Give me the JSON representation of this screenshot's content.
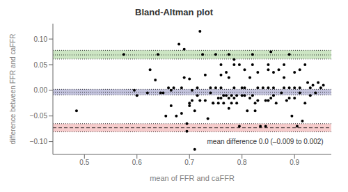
{
  "chart_data": {
    "type": "scatter",
    "title": "Bland-Altman plot",
    "xlabel": "mean of FFR and caFFR",
    "ylabel": "difference between FFR and caFFR",
    "xlim": [
      0.44,
      0.97
    ],
    "ylim": [
      -0.125,
      0.13
    ],
    "xticks": [
      0.5,
      0.6,
      0.7,
      0.8,
      0.9
    ],
    "yticks": [
      {
        "value": -0.1,
        "label": "−0.10"
      },
      {
        "value": -0.05,
        "label": "−0.05"
      },
      {
        "value": 0,
        "label": "0.00"
      },
      {
        "value": 0.05,
        "label": "0.05"
      },
      {
        "value": 0.1,
        "label": "0.10"
      }
    ],
    "grid": false,
    "color": "black",
    "bands": [
      {
        "y1": 0.061,
        "y2": 0.078,
        "color": "#99cc88"
      },
      {
        "y1": -0.009,
        "y2": 0.002,
        "color": "#8888bb"
      },
      {
        "y1": -0.081,
        "y2": -0.065,
        "color": "#ee9999"
      }
    ],
    "reference_lines": [
      {
        "y": 0.078,
        "line_style": "dotted"
      },
      {
        "y": 0.069,
        "line_style": "dotted"
      },
      {
        "y": 0.061,
        "line_style": "dotted"
      },
      {
        "y": 0.002,
        "line_style": "dotted"
      },
      {
        "y": -0.0035,
        "line_style": "dotted"
      },
      {
        "y": -0.009,
        "line_style": "dotted"
      },
      {
        "y": -0.065,
        "line_style": "dotted"
      },
      {
        "y": -0.073,
        "line_style": "dashed"
      },
      {
        "y": -0.081,
        "line_style": "dotted"
      }
    ],
    "annotations": [
      {
        "text": "mean difference 0.0 (–0.009 to 0.002)",
        "x": 0.955,
        "y": -0.108
      }
    ],
    "x": [
      0.485,
      0.575,
      0.595,
      0.6,
      0.62,
      0.625,
      0.635,
      0.64,
      0.645,
      0.65,
      0.655,
      0.66,
      0.665,
      0.665,
      0.67,
      0.675,
      0.68,
      0.685,
      0.685,
      0.69,
      0.69,
      0.695,
      0.695,
      0.7,
      0.7,
      0.7,
      0.705,
      0.705,
      0.71,
      0.71,
      0.715,
      0.715,
      0.72,
      0.72,
      0.725,
      0.73,
      0.73,
      0.735,
      0.74,
      0.74,
      0.745,
      0.745,
      0.75,
      0.75,
      0.755,
      0.755,
      0.76,
      0.76,
      0.76,
      0.76,
      0.765,
      0.765,
      0.77,
      0.77,
      0.775,
      0.775,
      0.775,
      0.775,
      0.78,
      0.78,
      0.785,
      0.785,
      0.785,
      0.785,
      0.79,
      0.79,
      0.795,
      0.795,
      0.8,
      0.8,
      0.805,
      0.805,
      0.805,
      0.81,
      0.815,
      0.815,
      0.82,
      0.82,
      0.82,
      0.825,
      0.825,
      0.83,
      0.83,
      0.83,
      0.835,
      0.84,
      0.845,
      0.845,
      0.85,
      0.85,
      0.85,
      0.85,
      0.855,
      0.855,
      0.86,
      0.86,
      0.86,
      0.865,
      0.87,
      0.875,
      0.88,
      0.88,
      0.88,
      0.885,
      0.89,
      0.89,
      0.89,
      0.895,
      0.9,
      0.9,
      0.9,
      0.905,
      0.91,
      0.91,
      0.91,
      0.915,
      0.92,
      0.92,
      0.925,
      0.93,
      0.93,
      0.935,
      0.94,
      0.945,
      0.95,
      0.955
    ],
    "values": [
      -0.04,
      0.07,
      0.0,
      -0.01,
      -0.005,
      0.04,
      0.02,
      0.07,
      -0.005,
      -0.005,
      -0.05,
      0.005,
      0.0,
      -0.03,
      0.005,
      -0.05,
      0.09,
      0.005,
      -0.045,
      0.08,
      0.025,
      -0.065,
      -0.08,
      0.022,
      -0.025,
      -0.03,
      0.0,
      -0.02,
      -0.115,
      -0.04,
      0.005,
      -0.01,
      0.115,
      -0.02,
      0.07,
      0.03,
      -0.02,
      -0.055,
      0.005,
      -0.005,
      -0.025,
      -0.025,
      0.07,
      0.005,
      -0.015,
      -0.025,
      0.05,
      0.03,
      0.005,
      -0.015,
      -0.01,
      -0.025,
      0.035,
      -0.01,
      0.07,
      0.025,
      -0.015,
      -0.035,
      -0.01,
      -0.025,
      0.06,
      0.05,
      0.005,
      -0.015,
      -0.01,
      -0.025,
      0.05,
      -0.07,
      0.005,
      -0.01,
      0.04,
      0.005,
      -0.01,
      -0.04,
      0.025,
      -0.015,
      0.07,
      0.05,
      -0.01,
      -0.025,
      -0.04,
      0.035,
      0.005,
      -0.02,
      -0.07,
      0.005,
      -0.02,
      -0.07,
      0.05,
      0.04,
      0.005,
      -0.02,
      0.075,
      -0.015,
      0.035,
      0.005,
      -0.01,
      -0.025,
      0.04,
      -0.005,
      0.05,
      0.025,
      0.005,
      -0.02,
      0.07,
      0.005,
      -0.015,
      -0.05,
      0.035,
      0.005,
      -0.015,
      -0.07,
      0.04,
      0.005,
      -0.005,
      -0.06,
      0.05,
      -0.025,
      0.015,
      0.005,
      -0.01,
      0.01,
      -0.005,
      0.015,
      0.005,
      0.01
    ]
  }
}
